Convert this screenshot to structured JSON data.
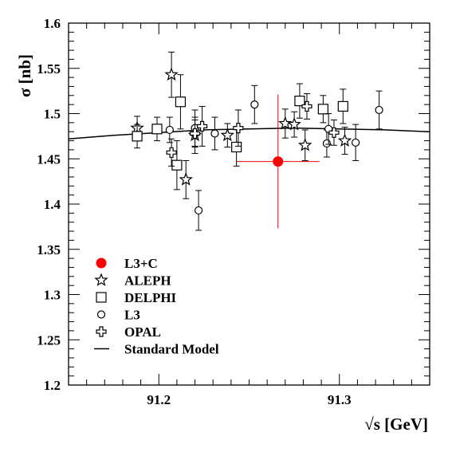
{
  "chart_data": {
    "type": "scatter",
    "title": "",
    "xlabel": "√s [GeV]",
    "ylabel": "σ [nb]",
    "xlim": [
      91.15,
      91.35
    ],
    "ylim": [
      1.2,
      1.6
    ],
    "x_ticks": [
      {
        "value": 91.2,
        "label": "91.2"
      },
      {
        "value": 91.3,
        "label": "91.3"
      }
    ],
    "y_ticks": [
      {
        "value": 1.2,
        "label": "1.2"
      },
      {
        "value": 1.25,
        "label": "1.25"
      },
      {
        "value": 1.3,
        "label": "1.3"
      },
      {
        "value": 1.35,
        "label": "1.35"
      },
      {
        "value": 1.4,
        "label": "1.4"
      },
      {
        "value": 1.45,
        "label": "1.45"
      },
      {
        "value": 1.5,
        "label": "1.5"
      },
      {
        "value": 1.55,
        "label": "1.55"
      },
      {
        "value": 1.6,
        "label": "1.6"
      }
    ],
    "grid": false,
    "legend_position": "bottom-left",
    "colors": {
      "combined": "#ff0000",
      "experiments": "#000000"
    },
    "series": [
      {
        "name": "L3+C",
        "marker": "filled-circle",
        "points": [
          {
            "x": 91.266,
            "y": 1.447,
            "ey": 0.074,
            "ex": 0.023
          }
        ]
      },
      {
        "name": "ALEPH",
        "marker": "star",
        "points": [
          {
            "x": 91.188,
            "y": 1.484,
            "ey": 0.013
          },
          {
            "x": 91.207,
            "y": 1.543,
            "ey": 0.025
          },
          {
            "x": 91.215,
            "y": 1.427,
            "ey": 0.021
          },
          {
            "x": 91.22,
            "y": 1.476,
            "ey": 0.02
          },
          {
            "x": 91.238,
            "y": 1.476,
            "ey": 0.013
          },
          {
            "x": 91.27,
            "y": 1.489,
            "ey": 0.016
          },
          {
            "x": 91.275,
            "y": 1.488,
            "ey": 0.014
          },
          {
            "x": 91.281,
            "y": 1.465,
            "ey": 0.017
          },
          {
            "x": 91.303,
            "y": 1.47,
            "ey": 0.015
          }
        ]
      },
      {
        "name": "DELPHI",
        "marker": "open-square",
        "points": [
          {
            "x": 91.188,
            "y": 1.475,
            "ey": 0.013
          },
          {
            "x": 91.199,
            "y": 1.483,
            "ey": 0.013
          },
          {
            "x": 91.21,
            "y": 1.443,
            "ey": 0.027
          },
          {
            "x": 91.212,
            "y": 1.513,
            "ey": 0.03
          },
          {
            "x": 91.243,
            "y": 1.463,
            "ey": 0.021
          },
          {
            "x": 91.278,
            "y": 1.514,
            "ey": 0.019
          },
          {
            "x": 91.291,
            "y": 1.505,
            "ey": 0.015
          },
          {
            "x": 91.302,
            "y": 1.508,
            "ey": 0.019
          }
        ]
      },
      {
        "name": "L3",
        "marker": "open-circle",
        "points": [
          {
            "x": 91.206,
            "y": 1.482,
            "ey": 0.014
          },
          {
            "x": 91.22,
            "y": 1.484,
            "ey": 0.02
          },
          {
            "x": 91.222,
            "y": 1.393,
            "ey": 0.022
          },
          {
            "x": 91.231,
            "y": 1.478,
            "ey": 0.018
          },
          {
            "x": 91.253,
            "y": 1.51,
            "ey": 0.021
          },
          {
            "x": 91.293,
            "y": 1.467,
            "ey": 0.015
          },
          {
            "x": 91.294,
            "y": 1.483,
            "ey": 0.017
          },
          {
            "x": 91.309,
            "y": 1.468,
            "ey": 0.02
          },
          {
            "x": 91.322,
            "y": 1.504,
            "ey": 0.021
          }
        ]
      },
      {
        "name": "OPAL",
        "marker": "open-cross",
        "points": [
          {
            "x": 91.207,
            "y": 1.457,
            "ey": 0.015
          },
          {
            "x": 91.22,
            "y": 1.478,
            "ey": 0.015
          },
          {
            "x": 91.224,
            "y": 1.486,
            "ey": 0.022
          },
          {
            "x": 91.244,
            "y": 1.484,
            "ey": 0.02
          },
          {
            "x": 91.282,
            "y": 1.508,
            "ey": 0.014
          },
          {
            "x": 91.297,
            "y": 1.479,
            "ey": 0.014
          }
        ]
      },
      {
        "name": "Standard Model",
        "marker": "line",
        "points": [
          {
            "x": 91.15,
            "y": 1.472
          },
          {
            "x": 91.175,
            "y": 1.476
          },
          {
            "x": 91.2,
            "y": 1.479
          },
          {
            "x": 91.225,
            "y": 1.482
          },
          {
            "x": 91.25,
            "y": 1.483
          },
          {
            "x": 91.275,
            "y": 1.484
          },
          {
            "x": 91.3,
            "y": 1.483
          },
          {
            "x": 91.325,
            "y": 1.482
          },
          {
            "x": 91.35,
            "y": 1.48
          }
        ]
      }
    ]
  }
}
